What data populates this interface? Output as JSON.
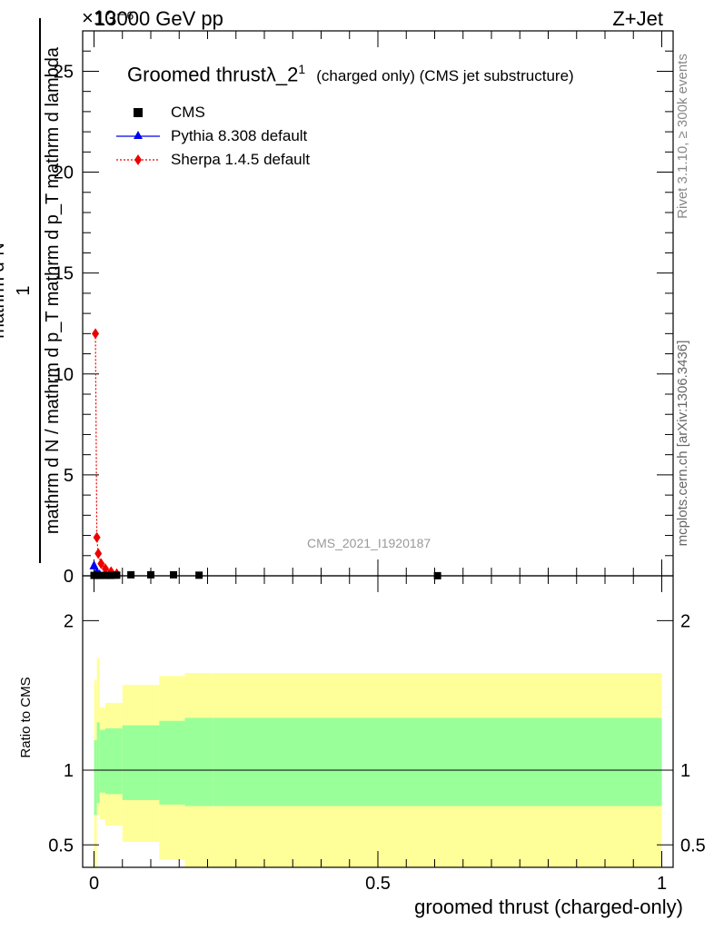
{
  "header": {
    "energy": "13000 GeV pp",
    "process": "Z+Jet",
    "scale_label": "×10⁻⁶"
  },
  "side_labels": {
    "rivet": "Rivet 3.1.10, ≥ 300k events",
    "mcplots": "mcplots.cern.ch [arXiv:1306.3436]"
  },
  "colors": {
    "cms": "#000000",
    "pythia": "#0000ee",
    "sherpa": "#ee0000",
    "band_outer": "#ffff99",
    "band_inner": "#99ff99"
  },
  "chart_data": [
    {
      "type": "scatter",
      "title": "Groomed thrust λ_2¹",
      "title_main": "Groomed thrust",
      "title_lambda": "λ_2",
      "title_sup": "1",
      "subtitle": "(charged only) (CMS jet substructure)",
      "watermark": "CMS_2021_I1920187",
      "ylabel_numerator": "1",
      "ylabel_den_frac_top": "mathrm d²N",
      "ylabel_den_frac_bottom": "mathrm d p_T mathrm d lambda",
      "ylabel_prefix": "mathrm d N / mathrm d p_T",
      "ylabel_line2_top": "mathrm d²N",
      "ylabel_line2_bottom": "mathrm d p_T mathrm d lambda",
      "ylabel_full_top": "mathrm d²N",
      "ylabel_full_bottom": "mathrm d N / mathrm d p_T mathrm d p_T mathrm d lambda",
      "xlim": [
        -0.02,
        1.02
      ],
      "ylim": [
        0,
        27
      ],
      "y_ticks": [
        0,
        5,
        10,
        15,
        20,
        25
      ],
      "y_tick_labels": [
        "0",
        "5",
        "10",
        "15",
        "20",
        "25"
      ],
      "legend": [
        "CMS",
        "Pythia 8.308 default",
        "Sherpa 1.4.5 default"
      ],
      "series": [
        {
          "name": "CMS",
          "marker": "square",
          "x": [
            0.0,
            0.005,
            0.01,
            0.02,
            0.03,
            0.04,
            0.065,
            0.1,
            0.14,
            0.185,
            0.605
          ],
          "values": [
            0.02,
            0.02,
            0.02,
            0.02,
            0.02,
            0.03,
            0.05,
            0.05,
            0.05,
            0.03,
            0.005
          ]
        },
        {
          "name": "Pythia 8.308 default",
          "marker": "triangle",
          "x": [
            0.0,
            0.005,
            0.01
          ],
          "values": [
            0.5,
            0.2,
            0.05
          ]
        },
        {
          "name": "Sherpa 1.4.5 default",
          "marker": "diamond",
          "x": [
            0.0025,
            0.005,
            0.0075,
            0.0125,
            0.02,
            0.03,
            0.04
          ],
          "values": [
            12.0,
            1.9,
            1.1,
            0.6,
            0.35,
            0.2,
            0.1
          ]
        }
      ]
    },
    {
      "type": "area",
      "ylabel": "Ratio to CMS",
      "xlabel": "groomed thrust (charged-only)",
      "xlim": [
        -0.02,
        1.02
      ],
      "ylim": [
        0.35,
        2.3
      ],
      "x_ticks": [
        0,
        0.5,
        1
      ],
      "x_tick_labels": [
        "0",
        "0.5",
        "1"
      ],
      "y_ticks": [
        0.5,
        1,
        2
      ],
      "y_tick_labels": [
        "0.5",
        "1",
        "2"
      ],
      "reference": 1,
      "bins": [
        0,
        0.005,
        0.01,
        0.02,
        0.05,
        0.115,
        0.16,
        0.21,
        1.0
      ],
      "band_inner": {
        "upper": [
          1.2,
          1.32,
          1.27,
          1.28,
          1.3,
          1.33,
          1.35,
          1.35
        ],
        "lower": [
          0.7,
          0.78,
          0.85,
          0.84,
          0.8,
          0.77,
          0.76,
          0.76
        ]
      },
      "band_outer": {
        "upper": [
          1.6,
          1.75,
          1.42,
          1.45,
          1.57,
          1.63,
          1.65,
          1.65
        ],
        "lower": [
          0.35,
          0.7,
          0.67,
          0.63,
          0.52,
          0.4,
          0.35,
          0.35
        ]
      }
    }
  ]
}
